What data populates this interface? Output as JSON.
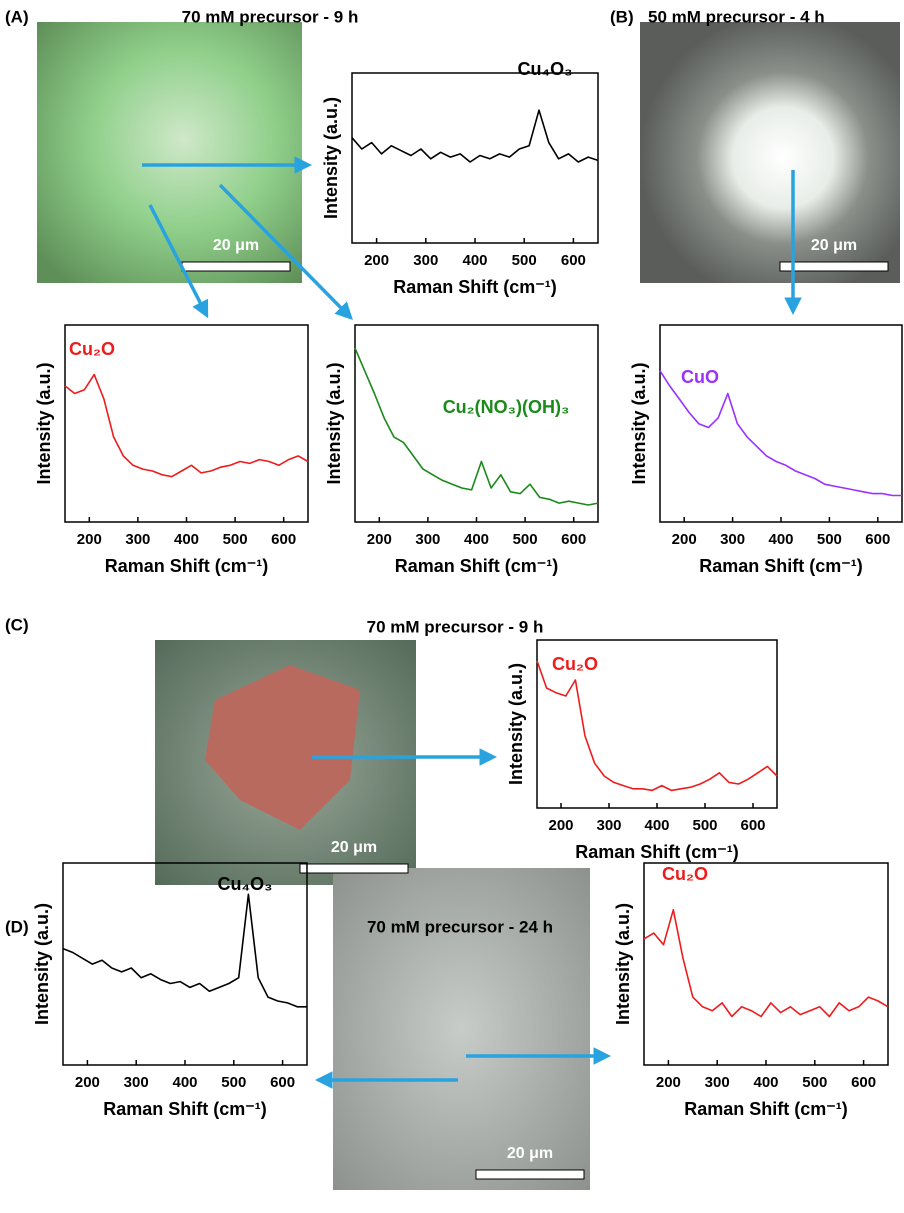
{
  "panels": [
    {
      "label": "(A)",
      "title": "70 mM precursor - 9 h",
      "scale_bar": "20 μm"
    },
    {
      "label": "(B)",
      "title": "50 mM precursor - 4 h",
      "scale_bar": "20 μm"
    },
    {
      "label": "(C)",
      "title": "70 mM precursor - 9 h",
      "scale_bar": "20 μm"
    },
    {
      "label": "(D)",
      "title": "70 mM precursor - 24 h",
      "scale_bar": "20 μm"
    }
  ],
  "chart_data": [
    {
      "type": "line",
      "x_label": "Raman Shift (cm⁻¹)",
      "y_label": "Intensity (a.u.)",
      "annotation": "Cu₄O₃",
      "annotation_color": "#000000",
      "xlim": [
        150,
        650
      ],
      "xticks": [
        200,
        300,
        400,
        500,
        600
      ],
      "ylim": [
        0,
        100
      ],
      "x": [
        150,
        170,
        190,
        210,
        230,
        250,
        270,
        290,
        310,
        330,
        350,
        370,
        390,
        410,
        430,
        450,
        470,
        490,
        510,
        530,
        550,
        570,
        590,
        610,
        630,
        650
      ],
      "series": [
        {
          "color": "#000000",
          "values": [
            65,
            58,
            62,
            55,
            60,
            57,
            54,
            58,
            52,
            56,
            53,
            55,
            50,
            54,
            52,
            55,
            53,
            58,
            60,
            82,
            62,
            52,
            55,
            50,
            53,
            51
          ]
        }
      ]
    },
    {
      "type": "line",
      "x_label": "Raman Shift (cm⁻¹)",
      "y_label": "Intensity (a.u.)",
      "annotation": "Cu₂O",
      "annotation_color": "#ee1c1c",
      "xlim": [
        150,
        650
      ],
      "xticks": [
        200,
        300,
        400,
        500,
        600
      ],
      "ylim": [
        0,
        100
      ],
      "x": [
        150,
        170,
        190,
        210,
        230,
        250,
        270,
        290,
        310,
        330,
        350,
        370,
        390,
        410,
        430,
        450,
        470,
        490,
        510,
        530,
        550,
        570,
        590,
        610,
        630,
        650
      ],
      "series": [
        {
          "color": "#ee1c1c",
          "values": [
            72,
            68,
            70,
            78,
            65,
            45,
            35,
            30,
            28,
            27,
            25,
            24,
            27,
            30,
            26,
            27,
            29,
            30,
            32,
            31,
            33,
            32,
            30,
            33,
            35,
            32
          ]
        }
      ]
    },
    {
      "type": "line",
      "x_label": "Raman Shift (cm⁻¹)",
      "y_label": "Intensity (a.u.)",
      "annotation": "Cu₂(NO₃)(OH)₃",
      "annotation_color": "#1a8a1a",
      "xlim": [
        150,
        650
      ],
      "xticks": [
        200,
        300,
        400,
        500,
        600
      ],
      "ylim": [
        0,
        100
      ],
      "x": [
        150,
        170,
        190,
        210,
        230,
        250,
        270,
        290,
        310,
        330,
        350,
        370,
        390,
        410,
        430,
        450,
        470,
        490,
        510,
        530,
        550,
        570,
        590,
        610,
        630,
        650
      ],
      "series": [
        {
          "color": "#1a8a1a",
          "values": [
            92,
            80,
            68,
            55,
            45,
            42,
            35,
            28,
            25,
            22,
            20,
            18,
            17,
            32,
            18,
            25,
            16,
            15,
            20,
            13,
            12,
            10,
            11,
            10,
            9,
            10
          ]
        }
      ]
    },
    {
      "type": "line",
      "x_label": "Raman Shift (cm⁻¹)",
      "y_label": "Intensity (a.u.)",
      "annotation": "CuO",
      "annotation_color": "#9b30ff",
      "xlim": [
        150,
        650
      ],
      "xticks": [
        200,
        300,
        400,
        500,
        600
      ],
      "ylim": [
        0,
        100
      ],
      "x": [
        150,
        170,
        190,
        210,
        230,
        250,
        270,
        290,
        310,
        330,
        350,
        370,
        390,
        410,
        430,
        450,
        470,
        490,
        510,
        530,
        550,
        570,
        590,
        610,
        630,
        650
      ],
      "series": [
        {
          "color": "#9b30ff",
          "values": [
            80,
            72,
            65,
            58,
            52,
            50,
            55,
            68,
            52,
            45,
            40,
            35,
            32,
            30,
            27,
            25,
            23,
            20,
            19,
            18,
            17,
            16,
            15,
            15,
            14,
            14
          ]
        }
      ]
    },
    {
      "type": "line",
      "x_label": "Raman Shift (cm⁻¹)",
      "y_label": "Intensity (a.u.)",
      "annotation": "Cu₂O",
      "annotation_color": "#ee1c1c",
      "xlim": [
        150,
        650
      ],
      "xticks": [
        200,
        300,
        400,
        500,
        600
      ],
      "ylim": [
        0,
        100
      ],
      "x": [
        150,
        170,
        190,
        210,
        230,
        250,
        270,
        290,
        310,
        330,
        350,
        370,
        390,
        410,
        430,
        450,
        470,
        490,
        510,
        530,
        550,
        570,
        590,
        610,
        630,
        650
      ],
      "series": [
        {
          "color": "#ee1c1c",
          "values": [
            92,
            75,
            72,
            70,
            80,
            45,
            28,
            20,
            16,
            14,
            12,
            12,
            11,
            14,
            11,
            12,
            13,
            15,
            18,
            22,
            16,
            15,
            18,
            22,
            26,
            20
          ]
        }
      ]
    },
    {
      "type": "line",
      "x_label": "Raman Shift (cm⁻¹)",
      "y_label": "Intensity (a.u.)",
      "annotation": "Cu₄O₃",
      "annotation_color": "#000000",
      "xlim": [
        150,
        650
      ],
      "xticks": [
        200,
        300,
        400,
        500,
        600
      ],
      "ylim": [
        0,
        100
      ],
      "x": [
        150,
        170,
        190,
        210,
        230,
        250,
        270,
        290,
        310,
        330,
        350,
        370,
        390,
        410,
        430,
        450,
        470,
        490,
        510,
        530,
        550,
        570,
        590,
        610,
        630,
        650
      ],
      "series": [
        {
          "color": "#000000",
          "values": [
            60,
            58,
            55,
            52,
            54,
            50,
            48,
            50,
            45,
            47,
            44,
            42,
            43,
            40,
            42,
            38,
            40,
            42,
            45,
            88,
            45,
            35,
            33,
            32,
            30,
            30
          ]
        }
      ]
    },
    {
      "type": "line",
      "x_label": "Raman Shift (cm⁻¹)",
      "y_label": "Intensity (a.u.)",
      "annotation": "Cu₂O",
      "annotation_color": "#ee1c1c",
      "xlim": [
        150,
        650
      ],
      "xticks": [
        200,
        300,
        400,
        500,
        600
      ],
      "ylim": [
        0,
        100
      ],
      "x": [
        150,
        170,
        190,
        210,
        230,
        250,
        270,
        290,
        310,
        330,
        350,
        370,
        390,
        410,
        430,
        450,
        470,
        490,
        510,
        530,
        550,
        570,
        590,
        610,
        630,
        650
      ],
      "series": [
        {
          "color": "#ee1c1c",
          "values": [
            65,
            68,
            62,
            80,
            55,
            35,
            30,
            28,
            32,
            25,
            30,
            28,
            25,
            32,
            27,
            30,
            26,
            28,
            30,
            25,
            32,
            28,
            30,
            35,
            33,
            30
          ]
        }
      ]
    }
  ]
}
